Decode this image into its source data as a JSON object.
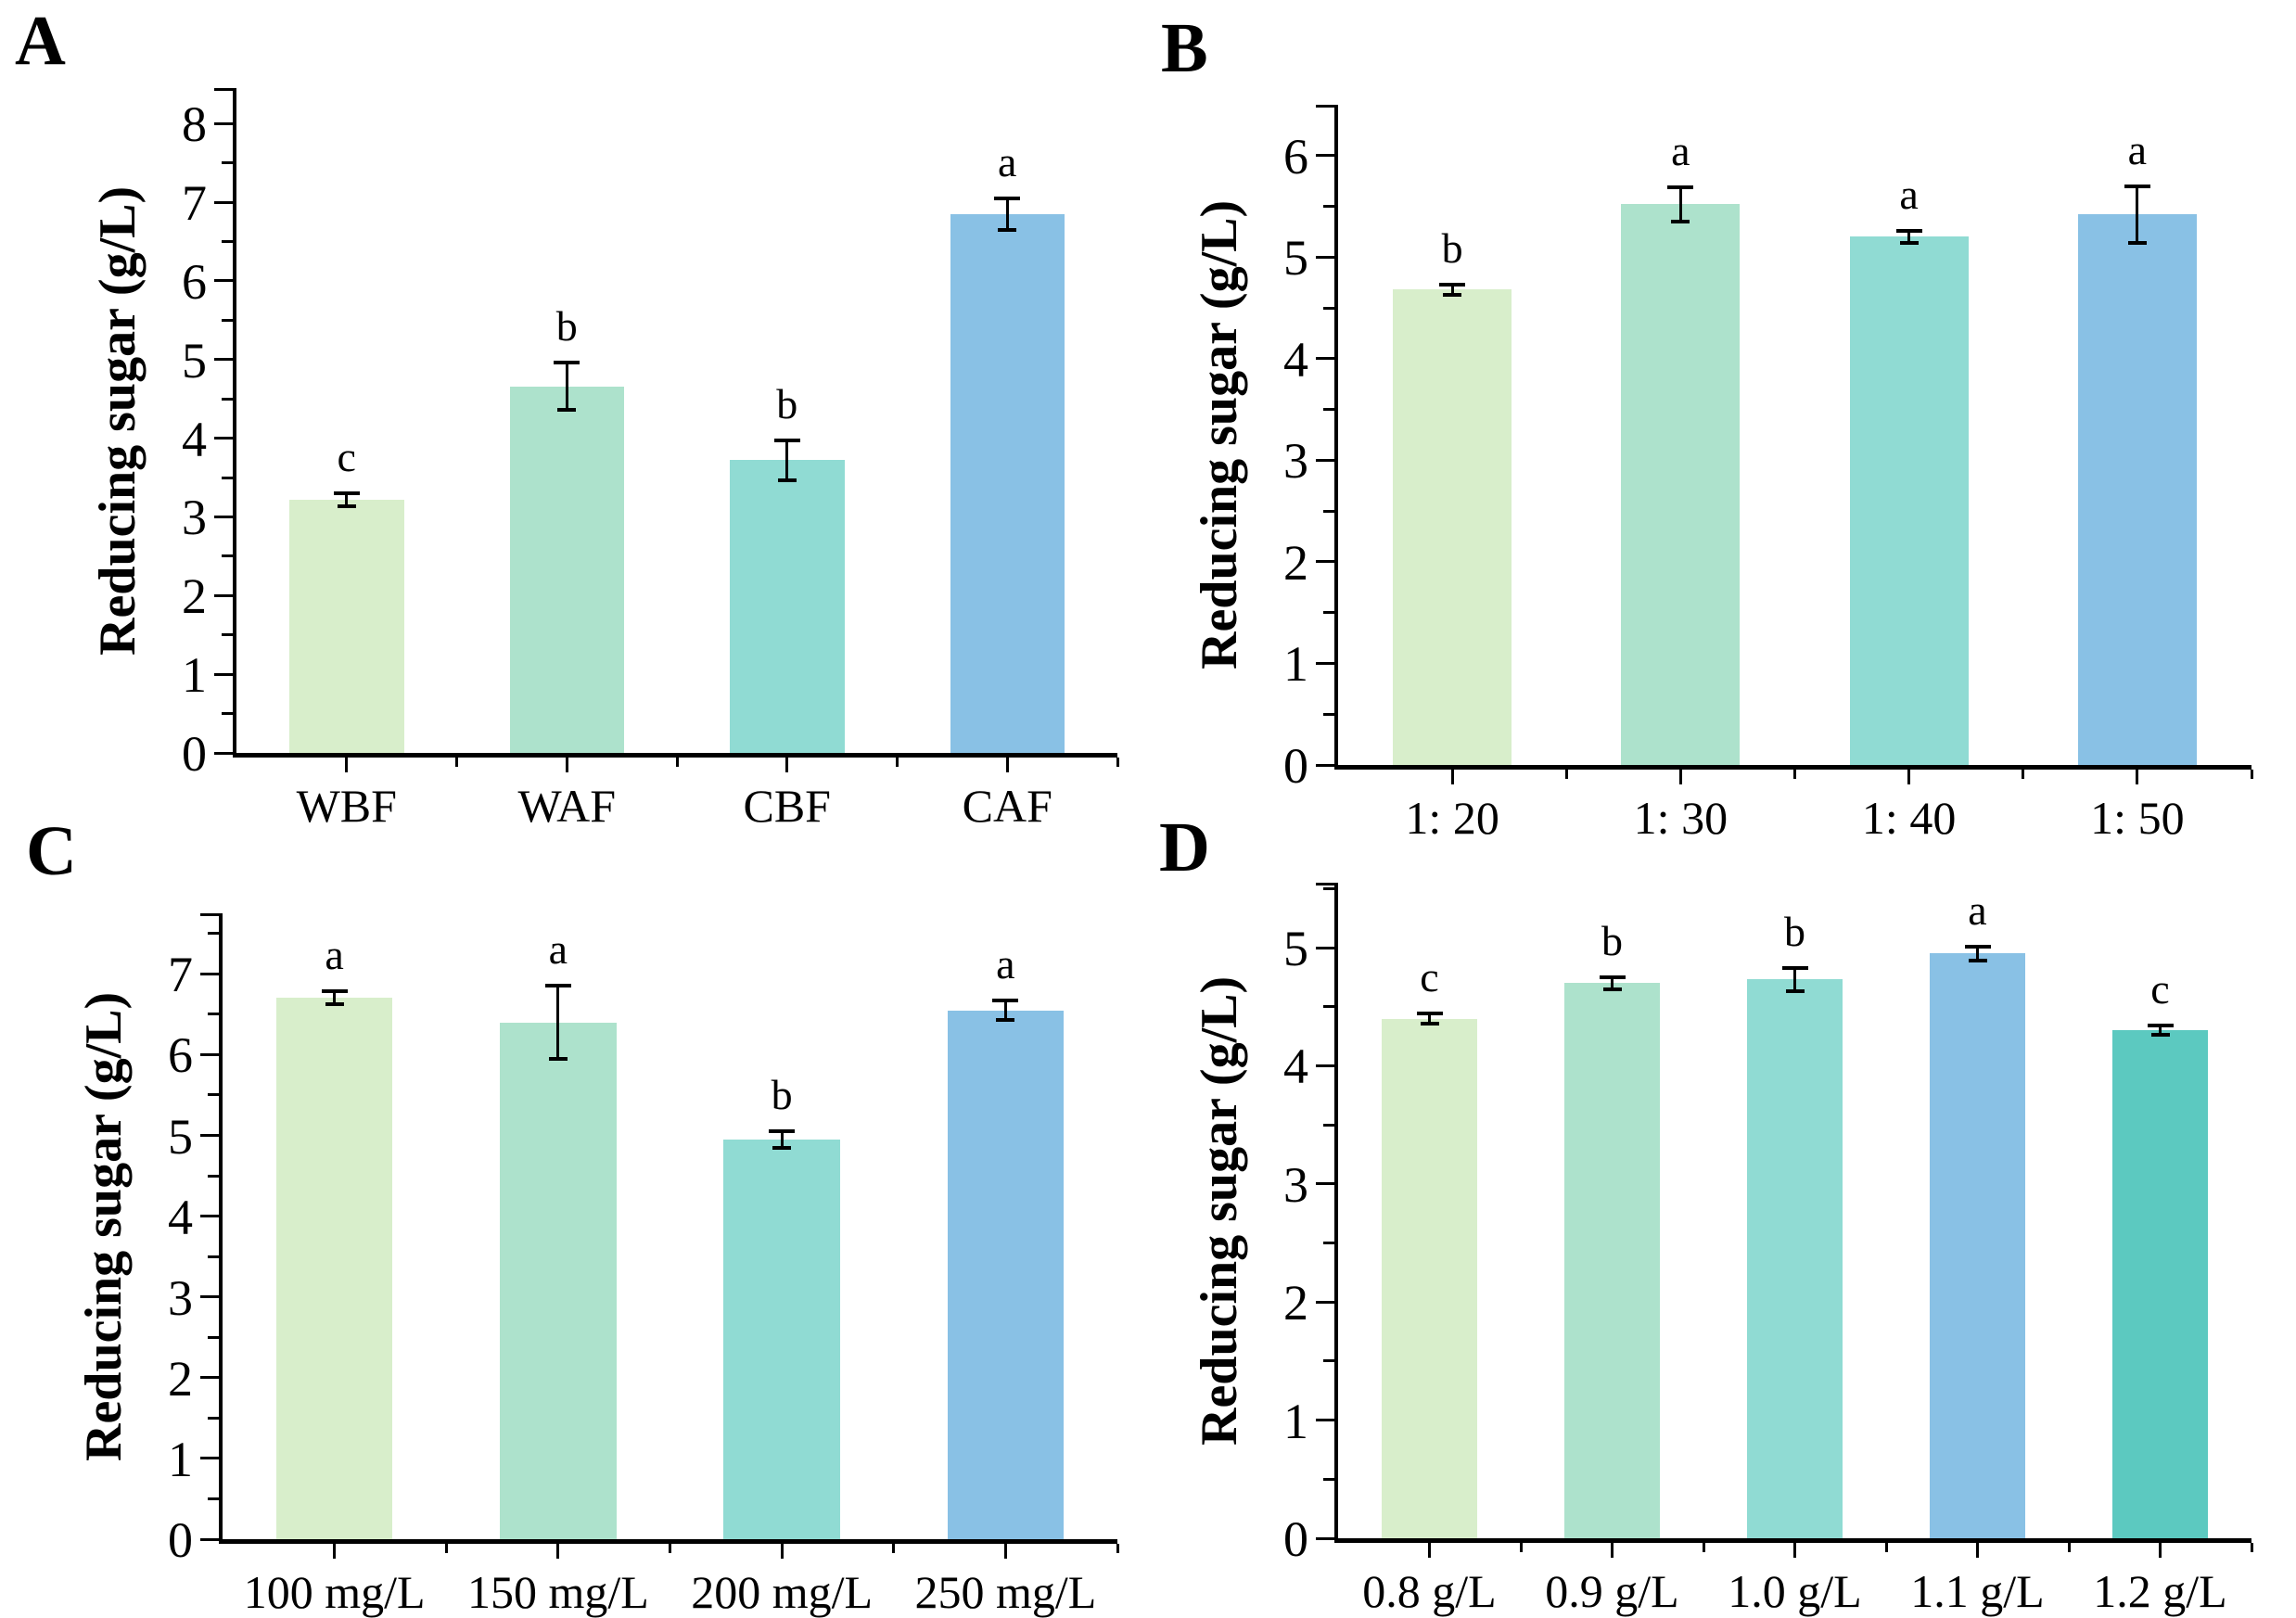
{
  "figure": {
    "panel_count": 4,
    "background_color": "#ffffff",
    "text_color": "#000000",
    "bar_palette": {
      "light_green": "#d8eecb",
      "green": "#ade2cc",
      "teal": "#90dbd3",
      "blue": "#89c1e5",
      "turquoise": "#5cc9c0"
    }
  },
  "chart_data": [
    {
      "panel": "A",
      "type": "bar",
      "title": "",
      "xlabel": "",
      "ylabel": "Reducing sugar（g/L）",
      "categories": [
        "WBF",
        "WAF",
        "CBF",
        "CAF"
      ],
      "values": [
        3.22,
        4.66,
        3.72,
        6.85
      ],
      "errors": [
        0.08,
        0.3,
        0.25,
        0.2
      ],
      "sig_letters": [
        "c",
        "b",
        "b",
        "a"
      ],
      "colors": [
        "#d8eecb",
        "#ade2cc",
        "#90dbd3",
        "#89c1e5"
      ],
      "ylim": [
        0,
        8.45
      ],
      "ytick_max": 8,
      "ytick_step": 1,
      "minor_tick_step": 0.5,
      "grid": false,
      "legend": "none"
    },
    {
      "panel": "B",
      "type": "bar",
      "title": "",
      "xlabel": "",
      "ylabel": "Reducing sugar（g/L）",
      "categories": [
        "1：20",
        "1：30",
        "1：40",
        "1：50"
      ],
      "values": [
        4.68,
        5.52,
        5.2,
        5.42
      ],
      "errors": [
        0.05,
        0.17,
        0.06,
        0.28
      ],
      "sig_letters": [
        "b",
        "a",
        "a",
        "a"
      ],
      "colors": [
        "#d8eecb",
        "#ade2cc",
        "#90dbd3",
        "#89c1e5"
      ],
      "ylim": [
        0,
        6.5
      ],
      "ytick_max": 6,
      "ytick_step": 1,
      "minor_tick_step": 0.5,
      "grid": false,
      "legend": "none"
    },
    {
      "panel": "C",
      "type": "bar",
      "title": "",
      "xlabel": "",
      "ylabel": "Reducing sugar（g/L）",
      "categories": [
        "100 mg/L",
        "150 mg/L",
        "200 mg/L",
        "250 mg/L"
      ],
      "values": [
        6.7,
        6.4,
        4.95,
        6.55
      ],
      "errors": [
        0.08,
        0.45,
        0.1,
        0.12
      ],
      "sig_letters": [
        "a",
        "a",
        "b",
        "a"
      ],
      "colors": [
        "#d8eecb",
        "#ade2cc",
        "#90dbd3",
        "#89c1e5"
      ],
      "ylim": [
        0,
        7.75
      ],
      "ytick_max": 7,
      "ytick_step": 1,
      "minor_tick_step": 0.5,
      "grid": false,
      "legend": "none"
    },
    {
      "panel": "D",
      "type": "bar",
      "title": "",
      "xlabel": "",
      "ylabel": "Reducing sugar（g/L）",
      "categories": [
        "0.8 g/L",
        "0.9 g/L",
        "1.0 g/L",
        "1.1 g/L",
        "1.2 g/L"
      ],
      "values": [
        4.4,
        4.7,
        4.73,
        4.95,
        4.3
      ],
      "errors": [
        0.04,
        0.05,
        0.1,
        0.06,
        0.04
      ],
      "sig_letters": [
        "c",
        "b",
        "b",
        "a",
        "c"
      ],
      "colors": [
        "#d8eecb",
        "#ade2cc",
        "#90dbd3",
        "#89c1e5",
        "#5cc9c0"
      ],
      "ylim": [
        0,
        5.55
      ],
      "ytick_max": 5,
      "ytick_step": 1,
      "minor_tick_step": 0.5,
      "grid": false,
      "legend": "none"
    }
  ]
}
